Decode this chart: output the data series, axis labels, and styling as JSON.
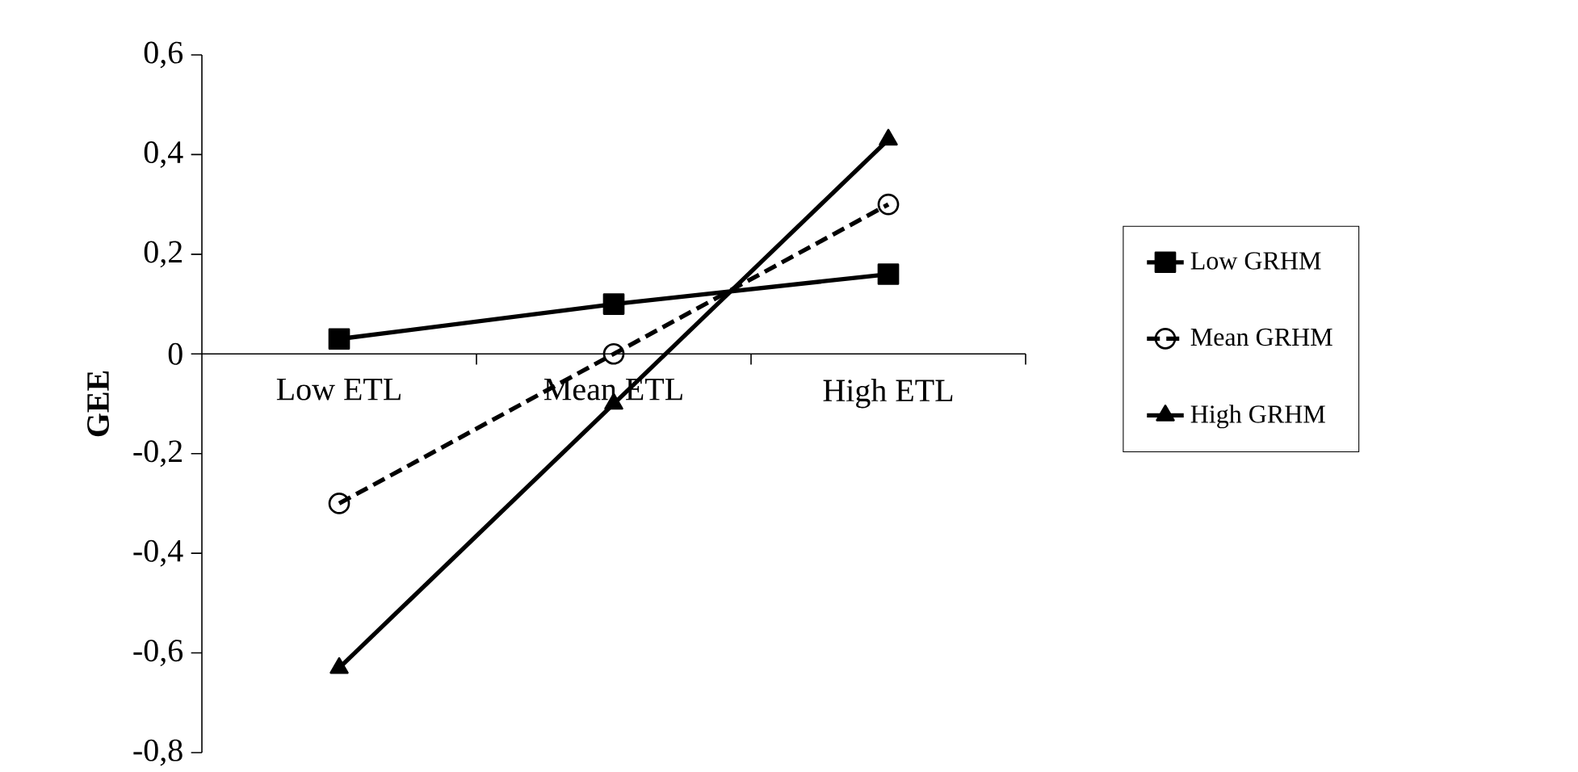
{
  "chart_data": {
    "type": "line",
    "ylabel": "GEE",
    "categories": [
      "Low ETL",
      "Mean ETL",
      "High ETL"
    ],
    "series": [
      {
        "name": "Low GRHM",
        "color": "#000000",
        "values": [
          0.03,
          0.1,
          0.16
        ],
        "marker": "square",
        "line_style": "solid"
      },
      {
        "name": "Mean  GRHM",
        "color": "#000000",
        "values": [
          -0.3,
          0.0,
          0.3
        ],
        "marker": "circle",
        "line_style": "dashed"
      },
      {
        "name": "High GRHM",
        "color": "#000000",
        "values": [
          -0.63,
          -0.1,
          0.43
        ],
        "marker": "triangle",
        "line_style": "solid"
      }
    ],
    "ylim": [
      -0.8,
      0.6
    ],
    "yticks": [
      {
        "value": -0.8,
        "label": "-0,8"
      },
      {
        "value": -0.6,
        "label": "-0,6"
      },
      {
        "value": -0.4,
        "label": "-0,4"
      },
      {
        "value": -0.2,
        "label": "-0,2"
      },
      {
        "value": 0,
        "label": "0"
      },
      {
        "value": 0.2,
        "label": "0,2"
      },
      {
        "value": 0.4,
        "label": "0,4"
      },
      {
        "value": 0.6,
        "label": "0,6"
      }
    ],
    "grid": false,
    "legend": "right"
  }
}
